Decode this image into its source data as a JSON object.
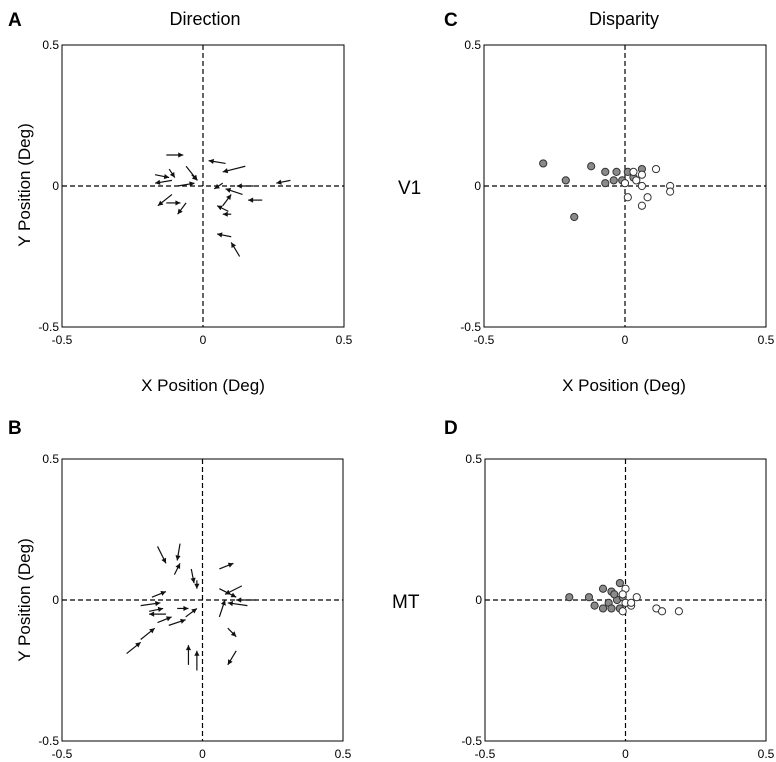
{
  "labels": {
    "row_top": "V1",
    "row_bottom": "MT",
    "x_axis_label": "X Position (Deg)",
    "y_axis_label": "Y Position (Deg)"
  },
  "chart_data": [
    {
      "id": "A",
      "panel_letter": "A",
      "type": "scatter",
      "title": "Direction",
      "xlabel": "X Position (Deg)",
      "ylabel": "Y Position (Deg)",
      "xlim": [
        -0.5,
        0.5
      ],
      "ylim": [
        -0.5,
        0.5
      ],
      "x_ticks": [
        "-0.5",
        "0",
        "0.5"
      ],
      "y_ticks": [
        "-0.5",
        "0",
        "0.5"
      ],
      "arrows": [
        {
          "x": -0.13,
          "y": 0.11,
          "dx": 0.06,
          "dy": 0.0
        },
        {
          "x": -0.17,
          "y": 0.04,
          "dx": 0.05,
          "dy": -0.01
        },
        {
          "x": -0.11,
          "y": 0.02,
          "dx": -0.06,
          "dy": -0.01
        },
        {
          "x": -0.12,
          "y": 0.06,
          "dx": 0.02,
          "dy": -0.03
        },
        {
          "x": -0.06,
          "y": 0.07,
          "dx": 0.04,
          "dy": -0.05
        },
        {
          "x": -0.09,
          "y": 0.0,
          "dx": 0.06,
          "dy": 0.01
        },
        {
          "x": -0.04,
          "y": 0.04,
          "dx": 0.02,
          "dy": -0.02
        },
        {
          "x": -0.11,
          "y": -0.03,
          "dx": -0.05,
          "dy": -0.04
        },
        {
          "x": -0.13,
          "y": -0.06,
          "dx": 0.05,
          "dy": 0.0
        },
        {
          "x": -0.06,
          "y": -0.06,
          "dx": -0.03,
          "dy": -0.04
        },
        {
          "x": 0.08,
          "y": 0.08,
          "dx": -0.06,
          "dy": 0.01
        },
        {
          "x": 0.15,
          "y": 0.07,
          "dx": -0.08,
          "dy": -0.02
        },
        {
          "x": 0.07,
          "y": 0.01,
          "dx": -0.03,
          "dy": -0.02
        },
        {
          "x": 0.18,
          "y": 0.0,
          "dx": -0.06,
          "dy": 0.0
        },
        {
          "x": 0.14,
          "y": -0.03,
          "dx": -0.06,
          "dy": 0.02
        },
        {
          "x": 0.21,
          "y": -0.05,
          "dx": -0.05,
          "dy": 0.0
        },
        {
          "x": 0.31,
          "y": 0.02,
          "dx": -0.05,
          "dy": -0.01
        },
        {
          "x": 0.07,
          "y": -0.07,
          "dx": 0.03,
          "dy": 0.04
        },
        {
          "x": 0.09,
          "y": -0.09,
          "dx": -0.04,
          "dy": 0.02
        },
        {
          "x": 0.1,
          "y": -0.1,
          "dx": -0.03,
          "dy": 0.0
        },
        {
          "x": 0.1,
          "y": -0.18,
          "dx": -0.05,
          "dy": 0.01
        },
        {
          "x": 0.13,
          "y": -0.25,
          "dx": -0.03,
          "dy": 0.05
        }
      ]
    },
    {
      "id": "C",
      "panel_letter": "C",
      "type": "scatter",
      "title": "Disparity",
      "xlabel": "X Position (Deg)",
      "ylabel": "",
      "xlim": [
        -0.5,
        0.5
      ],
      "ylim": [
        -0.5,
        0.5
      ],
      "x_ticks": [
        "-0.5",
        "0",
        "0.5"
      ],
      "y_ticks": [
        "-0.5",
        "0",
        "0.5"
      ],
      "series": [
        {
          "fill": "#8a8a8a",
          "points": [
            {
              "x": -0.29,
              "y": 0.08
            },
            {
              "x": -0.21,
              "y": 0.02
            },
            {
              "x": -0.12,
              "y": 0.07
            },
            {
              "x": -0.07,
              "y": 0.05
            },
            {
              "x": -0.03,
              "y": 0.05
            },
            {
              "x": 0.01,
              "y": 0.05
            },
            {
              "x": -0.07,
              "y": 0.01
            },
            {
              "x": -0.04,
              "y": 0.02
            },
            {
              "x": -0.01,
              "y": 0.02
            },
            {
              "x": 0.06,
              "y": 0.06
            },
            {
              "x": 0.03,
              "y": 0.03
            },
            {
              "x": -0.18,
              "y": -0.11
            }
          ]
        },
        {
          "fill": "#ffffff",
          "points": [
            {
              "x": 0.11,
              "y": 0.06
            },
            {
              "x": 0.06,
              "y": 0.04
            },
            {
              "x": 0.03,
              "y": 0.05
            },
            {
              "x": 0.04,
              "y": 0.02
            },
            {
              "x": 0.0,
              "y": 0.01
            },
            {
              "x": 0.06,
              "y": 0.0
            },
            {
              "x": 0.16,
              "y": 0.0
            },
            {
              "x": 0.16,
              "y": -0.02
            },
            {
              "x": 0.08,
              "y": -0.04
            },
            {
              "x": 0.01,
              "y": -0.04
            },
            {
              "x": 0.06,
              "y": -0.07
            }
          ]
        }
      ]
    },
    {
      "id": "B",
      "panel_letter": "B",
      "type": "scatter",
      "title": "",
      "xlabel": "",
      "ylabel": "Y Position (Deg)",
      "xlim": [
        -0.5,
        0.5
      ],
      "ylim": [
        -0.5,
        0.5
      ],
      "x_ticks": [
        "-0.5",
        "0",
        "0.5"
      ],
      "y_ticks": [
        "-0.5",
        "0",
        "0.5"
      ],
      "arrows": [
        {
          "x": -0.16,
          "y": 0.19,
          "dx": 0.03,
          "dy": -0.06
        },
        {
          "x": -0.08,
          "y": 0.2,
          "dx": -0.01,
          "dy": -0.06
        },
        {
          "x": -0.1,
          "y": 0.09,
          "dx": 0.02,
          "dy": 0.04
        },
        {
          "x": -0.04,
          "y": 0.11,
          "dx": 0.01,
          "dy": -0.05
        },
        {
          "x": -0.02,
          "y": 0.07,
          "dx": 0.0,
          "dy": -0.03
        },
        {
          "x": 0.06,
          "y": 0.11,
          "dx": 0.05,
          "dy": 0.02
        },
        {
          "x": 0.06,
          "y": 0.04,
          "dx": 0.06,
          "dy": -0.03
        },
        {
          "x": 0.14,
          "y": 0.05,
          "dx": -0.06,
          "dy": -0.03
        },
        {
          "x": 0.19,
          "y": 0.0,
          "dx": -0.07,
          "dy": 0.0
        },
        {
          "x": 0.16,
          "y": -0.02,
          "dx": -0.07,
          "dy": 0.01
        },
        {
          "x": -0.18,
          "y": 0.01,
          "dx": 0.05,
          "dy": 0.02
        },
        {
          "x": -0.22,
          "y": -0.02,
          "dx": 0.07,
          "dy": 0.01
        },
        {
          "x": -0.19,
          "y": -0.04,
          "dx": 0.05,
          "dy": 0.01
        },
        {
          "x": -0.13,
          "y": -0.05,
          "dx": -0.06,
          "dy": 0.0
        },
        {
          "x": -0.16,
          "y": -0.08,
          "dx": 0.05,
          "dy": 0.02
        },
        {
          "x": -0.12,
          "y": -0.09,
          "dx": 0.06,
          "dy": 0.02
        },
        {
          "x": -0.09,
          "y": -0.03,
          "dx": 0.04,
          "dy": 0.0
        },
        {
          "x": -0.06,
          "y": -0.06,
          "dx": 0.04,
          "dy": 0.03
        },
        {
          "x": 0.06,
          "y": -0.06,
          "dx": 0.02,
          "dy": 0.06
        },
        {
          "x": 0.09,
          "y": -0.1,
          "dx": 0.03,
          "dy": -0.03
        },
        {
          "x": 0.12,
          "y": -0.18,
          "dx": -0.03,
          "dy": -0.05
        },
        {
          "x": -0.27,
          "y": -0.19,
          "dx": 0.05,
          "dy": 0.04
        },
        {
          "x": -0.22,
          "y": -0.14,
          "dx": 0.05,
          "dy": 0.04
        },
        {
          "x": -0.05,
          "y": -0.23,
          "dx": 0.0,
          "dy": 0.07
        },
        {
          "x": -0.02,
          "y": -0.25,
          "dx": 0.0,
          "dy": 0.07
        }
      ]
    },
    {
      "id": "D",
      "panel_letter": "D",
      "type": "scatter",
      "title": "",
      "xlabel": "",
      "ylabel": "",
      "xlim": [
        -0.5,
        0.5
      ],
      "ylim": [
        -0.5,
        0.5
      ],
      "x_ticks": [
        "-0.5",
        "0",
        "0.5"
      ],
      "y_ticks": [
        "-0.5",
        "0",
        "0.5"
      ],
      "series": [
        {
          "fill": "#8a8a8a",
          "points": [
            {
              "x": -0.2,
              "y": 0.01
            },
            {
              "x": -0.13,
              "y": 0.01
            },
            {
              "x": -0.11,
              "y": -0.02
            },
            {
              "x": -0.08,
              "y": 0.04
            },
            {
              "x": -0.05,
              "y": 0.03
            },
            {
              "x": -0.02,
              "y": 0.06
            },
            {
              "x": -0.06,
              "y": -0.01
            },
            {
              "x": -0.03,
              "y": 0.0
            },
            {
              "x": -0.01,
              "y": 0.01
            },
            {
              "x": -0.08,
              "y": -0.03
            },
            {
              "x": -0.05,
              "y": -0.03
            },
            {
              "x": -0.02,
              "y": -0.03
            },
            {
              "x": -0.04,
              "y": 0.02
            }
          ]
        },
        {
          "fill": "#ffffff",
          "points": [
            {
              "x": 0.0,
              "y": 0.04
            },
            {
              "x": -0.01,
              "y": 0.02
            },
            {
              "x": 0.04,
              "y": 0.01
            },
            {
              "x": 0.02,
              "y": -0.02
            },
            {
              "x": 0.0,
              "y": -0.01
            },
            {
              "x": 0.11,
              "y": -0.03
            },
            {
              "x": 0.13,
              "y": -0.04
            },
            {
              "x": 0.19,
              "y": -0.04
            },
            {
              "x": 0.02,
              "y": -0.01
            },
            {
              "x": -0.01,
              "y": -0.04
            }
          ]
        }
      ]
    }
  ]
}
